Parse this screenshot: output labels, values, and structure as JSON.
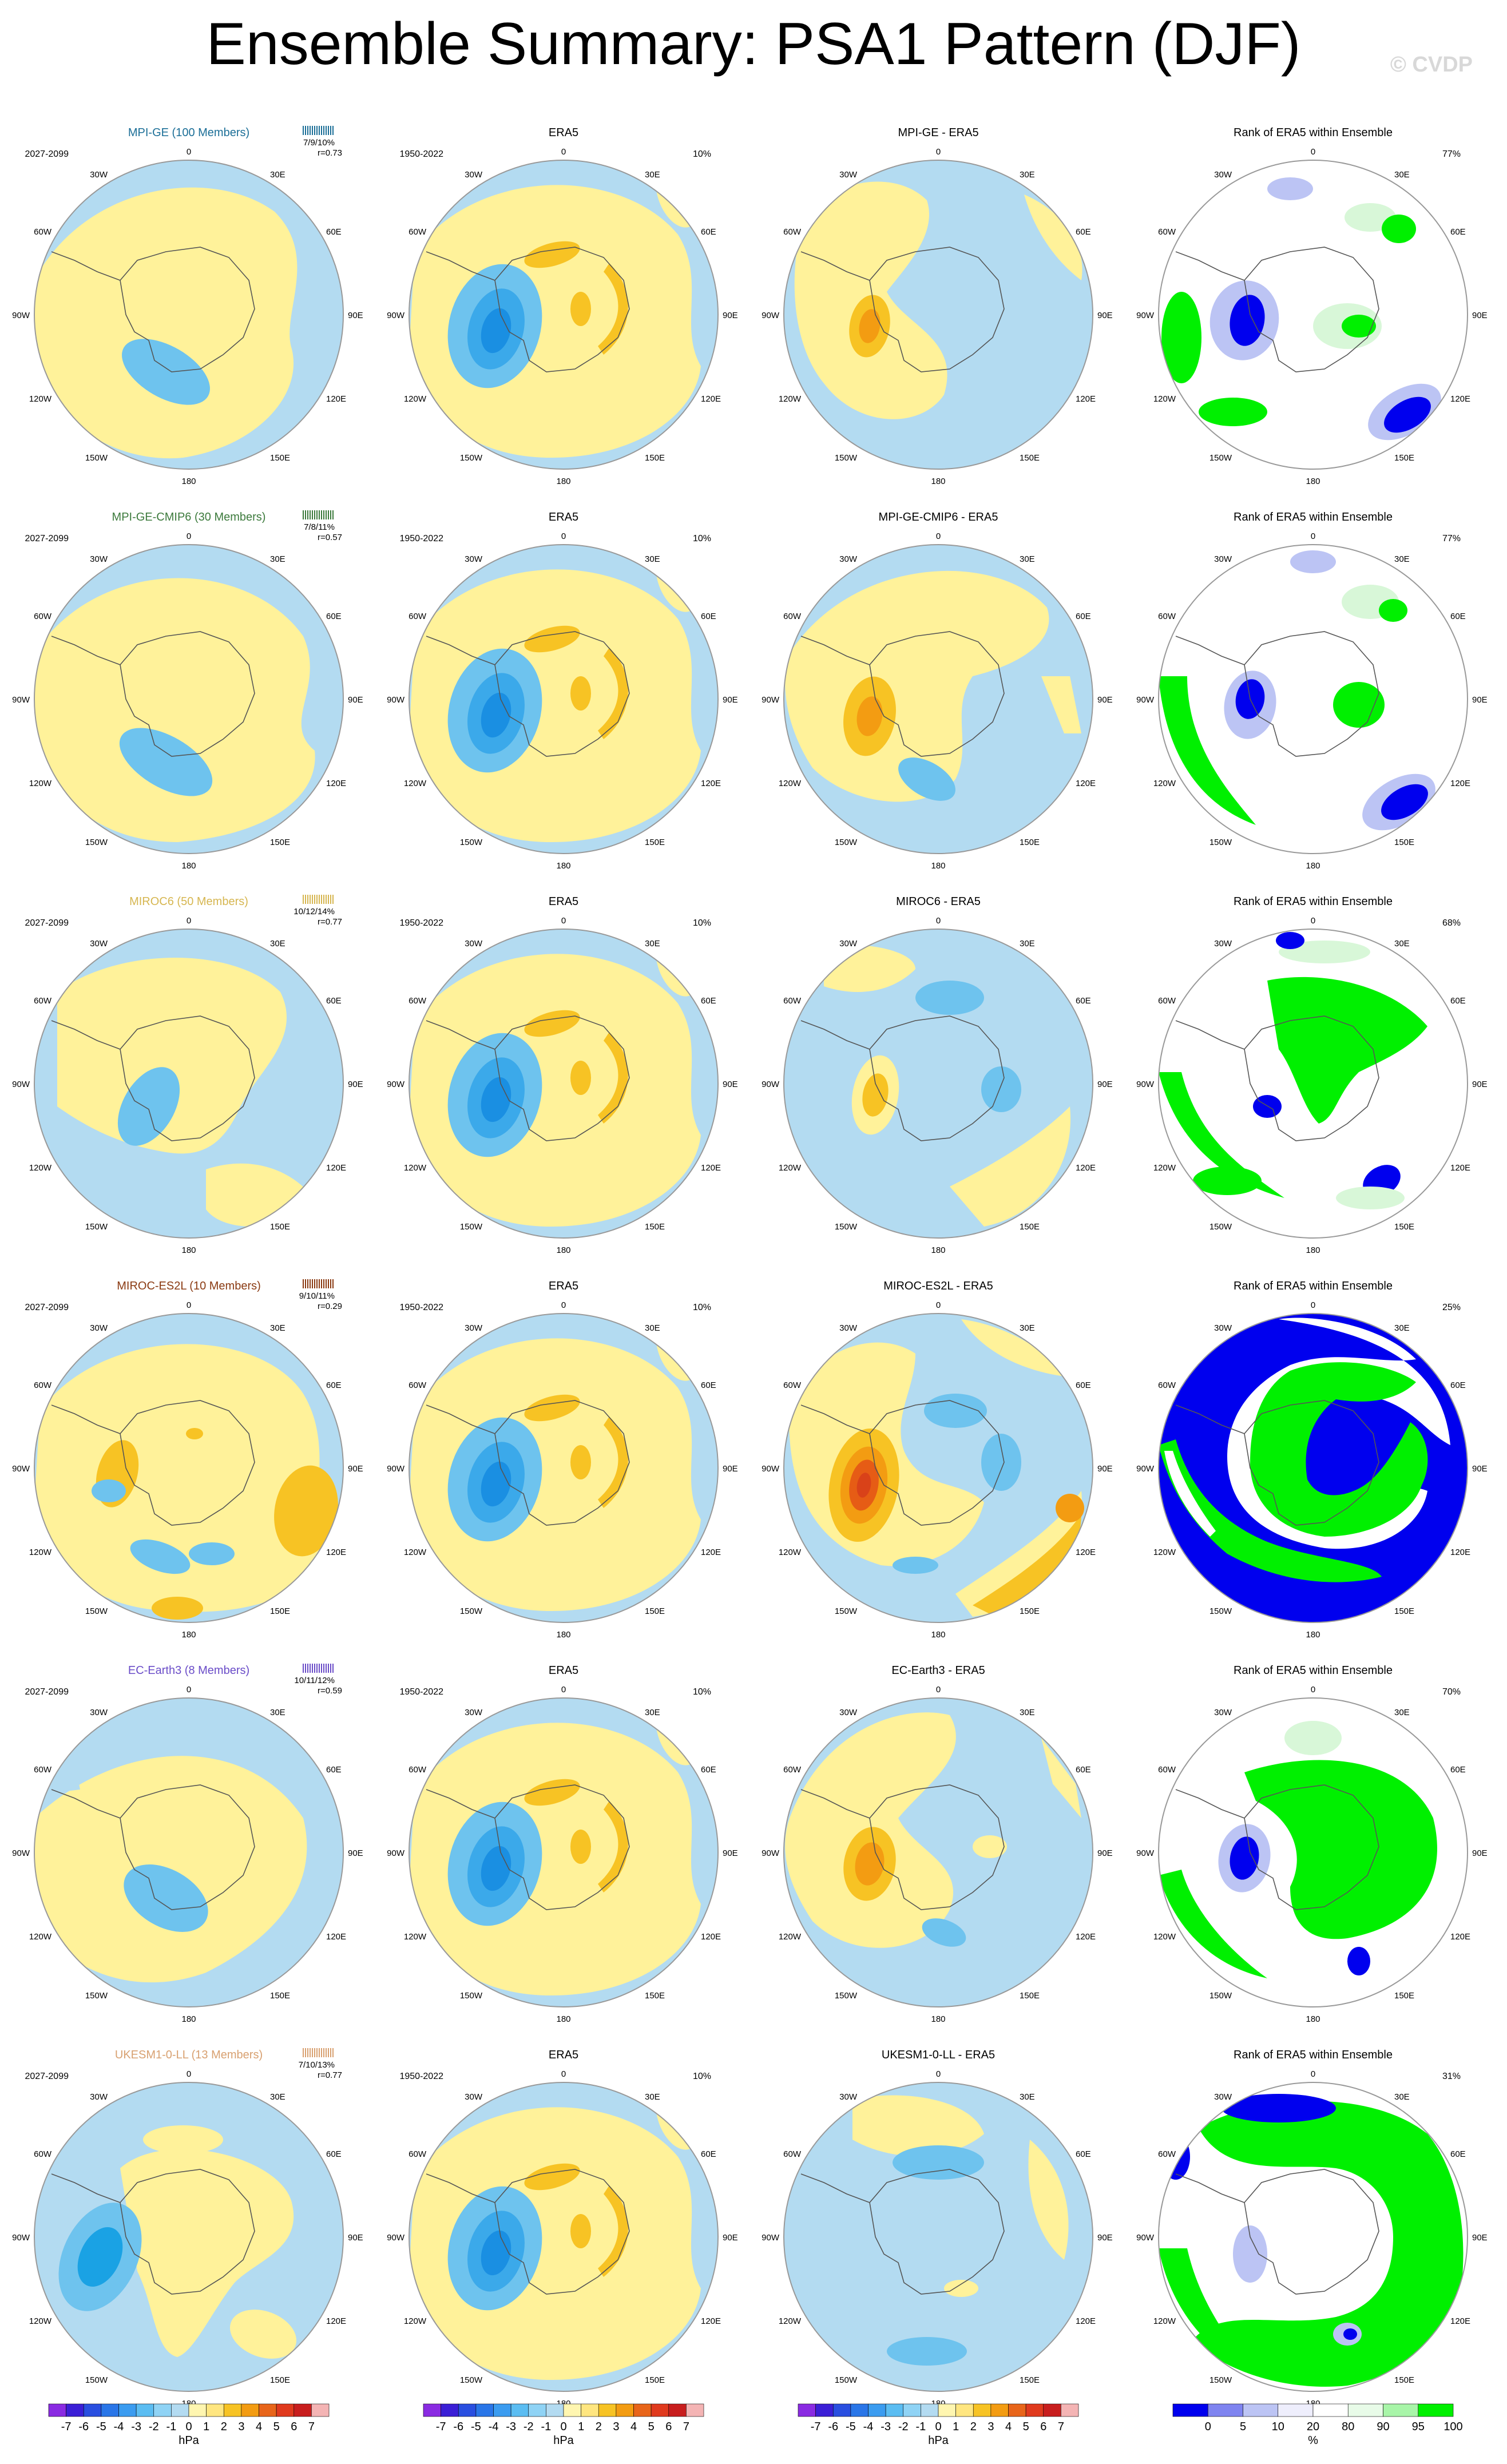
{
  "figure": {
    "title": "Ensemble Summary: PSA1 Pattern (DJF)",
    "credit": "© CVDP"
  },
  "colors": {
    "ocean": "#b3dbf1",
    "neg_light": "#6ec3ee",
    "neg_mid": "#1aa2e4",
    "pos_light": "#fff29a",
    "pos_mid": "#f7c324",
    "pos_strong": "#f39c12",
    "pos_deep": "#e65c15",
    "rank_low": "#0000ee",
    "rank_mid": "#bcc4f4",
    "rank_high": "#00f000",
    "rank_pale": "#d8f7d8"
  },
  "map_labels": {
    "top": "0",
    "bottom": "180",
    "left": "90W",
    "right": "90E",
    "ul_in": "30W",
    "ur_in": "30E",
    "ul_out": "60W",
    "ur_out": "60E",
    "ll_out": "120W",
    "lr_out": "120E",
    "ll_in": "150W",
    "lr_in": "150E"
  },
  "rows": [
    {
      "model": "MPI-GE (100 Members)",
      "model_color": "#1b6e97",
      "period": "2027-2099",
      "obs_period": "1950-2022",
      "obs_pct": "10%",
      "stats": "7/9/10%",
      "r": "r=0.73",
      "diff_title": "MPI-GE - ERA5",
      "rank_pct": "77%",
      "obs_title": "ERA5",
      "rank_title": "Rank of ERA5 within Ensemble"
    },
    {
      "model": "MPI-GE-CMIP6 (30 Members)",
      "model_color": "#3c7a3c",
      "period": "2027-2099",
      "obs_period": "1950-2022",
      "obs_pct": "10%",
      "stats": "7/8/11%",
      "r": "r=0.57",
      "diff_title": "MPI-GE-CMIP6 - ERA5",
      "rank_pct": "77%",
      "obs_title": "ERA5",
      "rank_title": "Rank of ERA5 within Ensemble"
    },
    {
      "model": "MIROC6 (50 Members)",
      "model_color": "#d6b650",
      "period": "2027-2099",
      "obs_period": "1950-2022",
      "obs_pct": "10%",
      "stats": "10/12/14%",
      "r": "r=0.77",
      "diff_title": "MIROC6 - ERA5",
      "rank_pct": "68%",
      "obs_title": "ERA5",
      "rank_title": "Rank of ERA5 within Ensemble"
    },
    {
      "model": "MIROC-ES2L (10 Members)",
      "model_color": "#8a3a12",
      "period": "2027-2099",
      "obs_period": "1950-2022",
      "obs_pct": "10%",
      "stats": "9/10/11%",
      "r": "r=0.29",
      "diff_title": "MIROC-ES2L - ERA5",
      "rank_pct": "25%",
      "obs_title": "ERA5",
      "rank_title": "Rank of ERA5 within Ensemble"
    },
    {
      "model": "EC-Earth3 (8 Members)",
      "model_color": "#6a4cc8",
      "period": "2027-2099",
      "obs_period": "1950-2022",
      "obs_pct": "10%",
      "stats": "10/11/12%",
      "r": "r=0.59",
      "diff_title": "EC-Earth3 - ERA5",
      "rank_pct": "70%",
      "obs_title": "ERA5",
      "rank_title": "Rank of ERA5 within Ensemble"
    },
    {
      "model": "UKESM1-0-LL (13 Members)",
      "model_color": "#d8a070",
      "period": "2027-2099",
      "obs_period": "1950-2022",
      "obs_pct": "10%",
      "stats": "7/10/13%",
      "r": "r=0.77",
      "diff_title": "UKESM1-0-LL - ERA5",
      "rank_pct": "31%",
      "obs_title": "ERA5",
      "rank_title": "Rank of ERA5 within Ensemble"
    }
  ],
  "chart_data": {
    "type": "heatmap",
    "description_type": "polar stereographic contour maps (Southern Hemisphere), 6 rows x 4 columns",
    "columns": [
      "model ensemble mean",
      "ERA5",
      "model - ERA5",
      "Rank of ERA5 within Ensemble"
    ],
    "hpa_colorbar": {
      "levels": [
        "-7",
        "-6",
        "-5",
        "-4",
        "-3",
        "-2",
        "-1",
        "0",
        "1",
        "2",
        "3",
        "4",
        "5",
        "6",
        "7"
      ],
      "unit": "hPa",
      "colors": [
        "#8a2be2",
        "#3b1fd6",
        "#2a4fe0",
        "#2a76e8",
        "#3b9cf0",
        "#5bbdf2",
        "#8fd3f5",
        "#b3dbf1",
        "#fff6b0",
        "#ffe680",
        "#f7c324",
        "#f39c12",
        "#e8651a",
        "#e03a1e",
        "#c81e1e",
        "#f4b4b4"
      ]
    },
    "rank_colorbar": {
      "levels": [
        "0",
        "5",
        "10",
        "20",
        "80",
        "90",
        "95",
        "100"
      ],
      "unit": "%",
      "colors": [
        "#0000ee",
        "#7f84f0",
        "#bcc4f4",
        "#eeeefc",
        "#ffffff",
        "#e8fbe8",
        "#a8f5a8",
        "#00f000"
      ]
    }
  }
}
